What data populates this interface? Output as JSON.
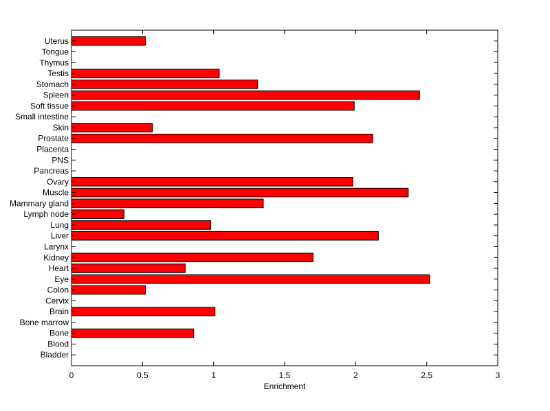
{
  "chart_data": {
    "type": "bar",
    "orientation": "horizontal",
    "xlabel": "Enrichment",
    "ylabel": "",
    "title": "",
    "xlim": [
      0,
      3
    ],
    "xticks": [
      0,
      0.5,
      1,
      1.5,
      2,
      2.5,
      3
    ],
    "xtick_labels": [
      "0",
      "0.5",
      "1",
      "1.5",
      "2",
      "2.5",
      "3"
    ],
    "grid": false,
    "bar_color": "#ff0000",
    "bar_edge_color": "#000000",
    "categories": [
      "Bladder",
      "Blood",
      "Bone",
      "Bone marrow",
      "Brain",
      "Cervix",
      "Colon",
      "Eye",
      "Heart",
      "Kidney",
      "Larynx",
      "Liver",
      "Lung",
      "Lymph node",
      "Mammary gland",
      "Muscle",
      "Ovary",
      "Pancreas",
      "PNS",
      "Placenta",
      "Prostate",
      "Skin",
      "Small intestine",
      "Soft tissue",
      "Spleen",
      "Stomach",
      "Testis",
      "Thymus",
      "Tongue",
      "Uterus"
    ],
    "values": [
      0,
      0,
      0.86,
      0,
      1.01,
      0,
      0.52,
      2.52,
      0.8,
      1.7,
      0,
      2.16,
      0.98,
      0.37,
      1.35,
      2.37,
      1.98,
      0,
      0,
      0,
      2.12,
      0.57,
      0,
      1.99,
      2.45,
      1.31,
      1.04,
      0,
      0,
      0.52
    ]
  }
}
